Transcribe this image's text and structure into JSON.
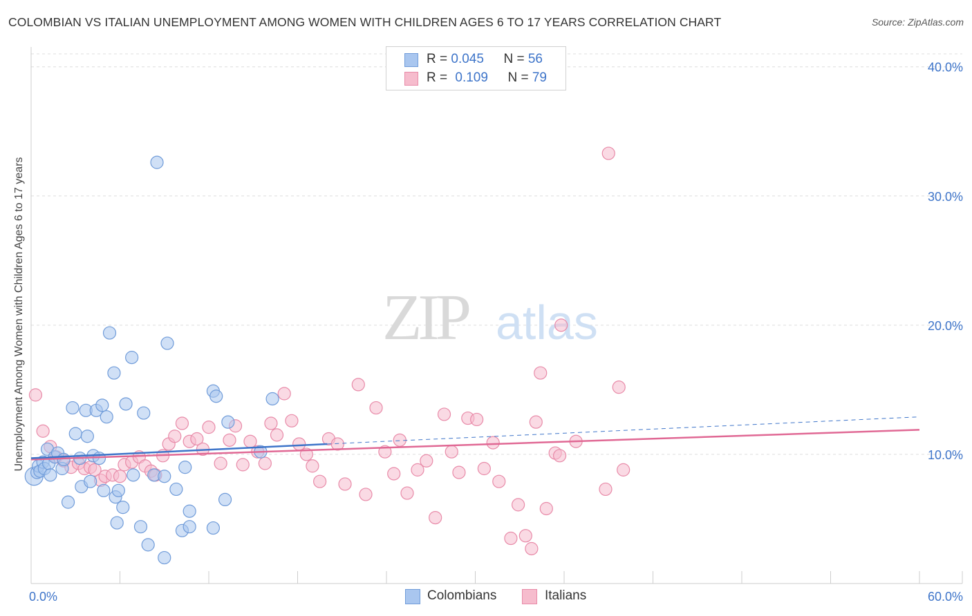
{
  "title": "COLOMBIAN VS ITALIAN UNEMPLOYMENT AMONG WOMEN WITH CHILDREN AGES 6 TO 17 YEARS CORRELATION CHART",
  "source": "Source: ZipAtlas.com",
  "watermark": {
    "zip": "ZIP",
    "atlas": "atlas"
  },
  "legend_top": {
    "rows": [
      {
        "r_label": "R = ",
        "r_value": "0.045",
        "n_label": "N = ",
        "n_value": "56"
      },
      {
        "r_label": "R = ",
        "r_value": "0.109",
        "n_label": "N = ",
        "n_value": "79"
      }
    ]
  },
  "legend_bottom": {
    "colombians": "Colombians",
    "italians": "Italians"
  },
  "colors": {
    "colombians_fill": "#a9c6ef",
    "colombians_stroke": "#6f9bd9",
    "colombians_line": "#3d74c9",
    "italians_fill": "#f6bccd",
    "italians_stroke": "#e88aa8",
    "italians_line": "#e06894",
    "tick_label": "#3d74c9",
    "grid": "#dddddd"
  },
  "chart_data": {
    "type": "scatter",
    "title": "COLOMBIAN VS ITALIAN UNEMPLOYMENT AMONG WOMEN WITH CHILDREN AGES 6 TO 17 YEARS CORRELATION CHART",
    "xlabel": "",
    "ylabel": "Unemployment Among Women with Children Ages 6 to 17 years",
    "xlim": [
      0,
      60
    ],
    "ylim": [
      0,
      41
    ],
    "x_tick_labels": [
      "0.0%",
      "60.0%"
    ],
    "y_ticks": [
      10,
      20,
      30,
      40
    ],
    "y_tick_labels": [
      "10.0%",
      "20.0%",
      "30.0%",
      "40.0%"
    ],
    "grid": true,
    "legend_position": "top-center",
    "series": [
      {
        "name": "Colombians",
        "R": 0.045,
        "N": 56,
        "trend": {
          "solid": [
            [
              0,
              9.7
            ],
            [
              20,
              10.8
            ]
          ],
          "dashed": [
            [
              20,
              10.8
            ],
            [
              60,
              12.9
            ]
          ]
        },
        "points": [
          [
            0.2,
            8.3
          ],
          [
            0.4,
            8.6
          ],
          [
            0.5,
            9.1
          ],
          [
            0.6,
            8.7
          ],
          [
            0.8,
            9.4
          ],
          [
            0.9,
            8.9
          ],
          [
            1.1,
            10.4
          ],
          [
            1.2,
            9.3
          ],
          [
            1.3,
            8.4
          ],
          [
            1.6,
            9.8
          ],
          [
            1.8,
            10.1
          ],
          [
            2.1,
            8.9
          ],
          [
            2.2,
            9.6
          ],
          [
            2.5,
            6.3
          ],
          [
            2.8,
            13.6
          ],
          [
            3.0,
            11.6
          ],
          [
            3.4,
            7.5
          ],
          [
            3.3,
            9.7
          ],
          [
            3.7,
            13.4
          ],
          [
            3.8,
            11.4
          ],
          [
            4.0,
            7.9
          ],
          [
            4.2,
            9.9
          ],
          [
            4.4,
            13.4
          ],
          [
            4.6,
            9.7
          ],
          [
            4.8,
            13.8
          ],
          [
            4.9,
            7.2
          ],
          [
            5.1,
            12.9
          ],
          [
            5.3,
            19.4
          ],
          [
            5.6,
            16.3
          ],
          [
            5.7,
            6.7
          ],
          [
            5.8,
            4.7
          ],
          [
            5.9,
            7.2
          ],
          [
            6.2,
            5.9
          ],
          [
            6.4,
            13.9
          ],
          [
            6.8,
            17.5
          ],
          [
            6.9,
            8.4
          ],
          [
            7.4,
            4.4
          ],
          [
            7.6,
            13.2
          ],
          [
            7.9,
            3.0
          ],
          [
            8.5,
            32.6
          ],
          [
            8.3,
            8.4
          ],
          [
            9.0,
            8.3
          ],
          [
            9.2,
            18.6
          ],
          [
            9.0,
            2.0
          ],
          [
            9.8,
            7.3
          ],
          [
            10.2,
            4.1
          ],
          [
            10.4,
            9.0
          ],
          [
            10.7,
            4.4
          ],
          [
            10.7,
            5.6
          ],
          [
            12.3,
            14.9
          ],
          [
            12.5,
            14.5
          ],
          [
            12.3,
            4.3
          ],
          [
            13.1,
            6.5
          ],
          [
            13.3,
            12.5
          ],
          [
            15.5,
            10.2
          ],
          [
            16.3,
            14.3
          ]
        ]
      },
      {
        "name": "Italians",
        "R": 0.109,
        "N": 79,
        "trend": {
          "solid": [
            [
              0,
              9.6
            ],
            [
              60,
              11.9
            ]
          ]
        },
        "points": [
          [
            0.3,
            14.6
          ],
          [
            0.8,
            11.8
          ],
          [
            1.3,
            10.6
          ],
          [
            1.7,
            9.8
          ],
          [
            2.2,
            9.5
          ],
          [
            2.7,
            9.0
          ],
          [
            3.2,
            9.3
          ],
          [
            3.6,
            8.9
          ],
          [
            4.0,
            9.0
          ],
          [
            4.3,
            8.8
          ],
          [
            4.7,
            8.0
          ],
          [
            5.0,
            8.3
          ],
          [
            5.5,
            8.4
          ],
          [
            6.0,
            8.3
          ],
          [
            6.3,
            9.2
          ],
          [
            6.8,
            9.4
          ],
          [
            7.3,
            9.8
          ],
          [
            7.7,
            9.1
          ],
          [
            8.1,
            8.7
          ],
          [
            8.4,
            8.4
          ],
          [
            8.9,
            9.9
          ],
          [
            9.3,
            10.8
          ],
          [
            9.7,
            11.4
          ],
          [
            10.2,
            12.4
          ],
          [
            10.7,
            11.0
          ],
          [
            11.2,
            11.2
          ],
          [
            11.6,
            10.4
          ],
          [
            12.0,
            12.1
          ],
          [
            12.8,
            9.3
          ],
          [
            13.4,
            11.1
          ],
          [
            13.8,
            12.2
          ],
          [
            14.3,
            9.2
          ],
          [
            14.8,
            11.0
          ],
          [
            15.3,
            10.2
          ],
          [
            15.8,
            9.3
          ],
          [
            16.2,
            12.4
          ],
          [
            16.6,
            11.5
          ],
          [
            17.1,
            14.7
          ],
          [
            17.6,
            12.6
          ],
          [
            18.1,
            10.8
          ],
          [
            18.6,
            10.0
          ],
          [
            19.0,
            9.1
          ],
          [
            19.5,
            7.9
          ],
          [
            20.1,
            11.2
          ],
          [
            20.7,
            10.8
          ],
          [
            21.2,
            7.7
          ],
          [
            22.1,
            15.4
          ],
          [
            22.6,
            6.9
          ],
          [
            23.3,
            13.6
          ],
          [
            23.9,
            10.2
          ],
          [
            24.5,
            8.5
          ],
          [
            24.9,
            11.1
          ],
          [
            25.4,
            7.0
          ],
          [
            26.1,
            8.8
          ],
          [
            26.7,
            9.5
          ],
          [
            27.3,
            5.1
          ],
          [
            27.9,
            13.1
          ],
          [
            28.4,
            10.2
          ],
          [
            28.9,
            8.6
          ],
          [
            29.5,
            12.8
          ],
          [
            30.1,
            12.7
          ],
          [
            30.6,
            8.9
          ],
          [
            31.2,
            10.9
          ],
          [
            31.6,
            7.9
          ],
          [
            32.4,
            3.5
          ],
          [
            32.9,
            6.1
          ],
          [
            33.4,
            3.7
          ],
          [
            33.8,
            2.7
          ],
          [
            34.1,
            12.5
          ],
          [
            34.4,
            16.3
          ],
          [
            34.8,
            5.8
          ],
          [
            35.4,
            10.1
          ],
          [
            35.7,
            9.9
          ],
          [
            35.8,
            20.0
          ],
          [
            36.8,
            11.0
          ],
          [
            38.8,
            7.3
          ],
          [
            39.0,
            33.3
          ],
          [
            39.7,
            15.2
          ],
          [
            40.0,
            8.8
          ]
        ]
      }
    ]
  }
}
